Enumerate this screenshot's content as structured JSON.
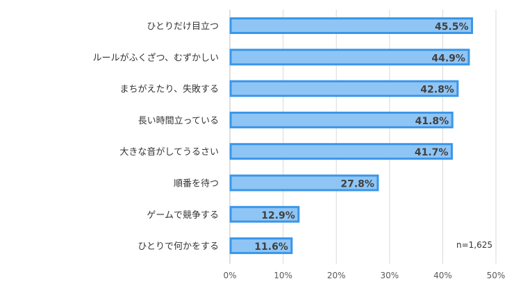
{
  "chart_data": {
    "type": "bar",
    "orientation": "horizontal",
    "categories": [
      "ひとりだけ目立つ",
      "ルールがふくざつ、むずかしい",
      "まちがえたり、失敗する",
      "長い時間立っている",
      "大きな音がしてうるさい",
      "順番を待つ",
      "ゲームで競争する",
      "ひとりで何かをする"
    ],
    "values": [
      45.5,
      44.9,
      42.8,
      41.8,
      41.7,
      27.8,
      12.9,
      11.6
    ],
    "value_labels": [
      "45.5%",
      "44.9%",
      "42.8%",
      "41.8%",
      "41.7%",
      "27.8%",
      "12.9%",
      "11.6%"
    ],
    "xlim": [
      0,
      50
    ],
    "xticks": [
      0,
      10,
      20,
      30,
      40,
      50
    ],
    "xtick_labels": [
      "0%",
      "10%",
      "20%",
      "30%",
      "40%",
      "50%"
    ],
    "grid": true,
    "bar_color": "#8fc5f5",
    "bar_border_color": "#3a96e8"
  },
  "note": "n=1,625"
}
